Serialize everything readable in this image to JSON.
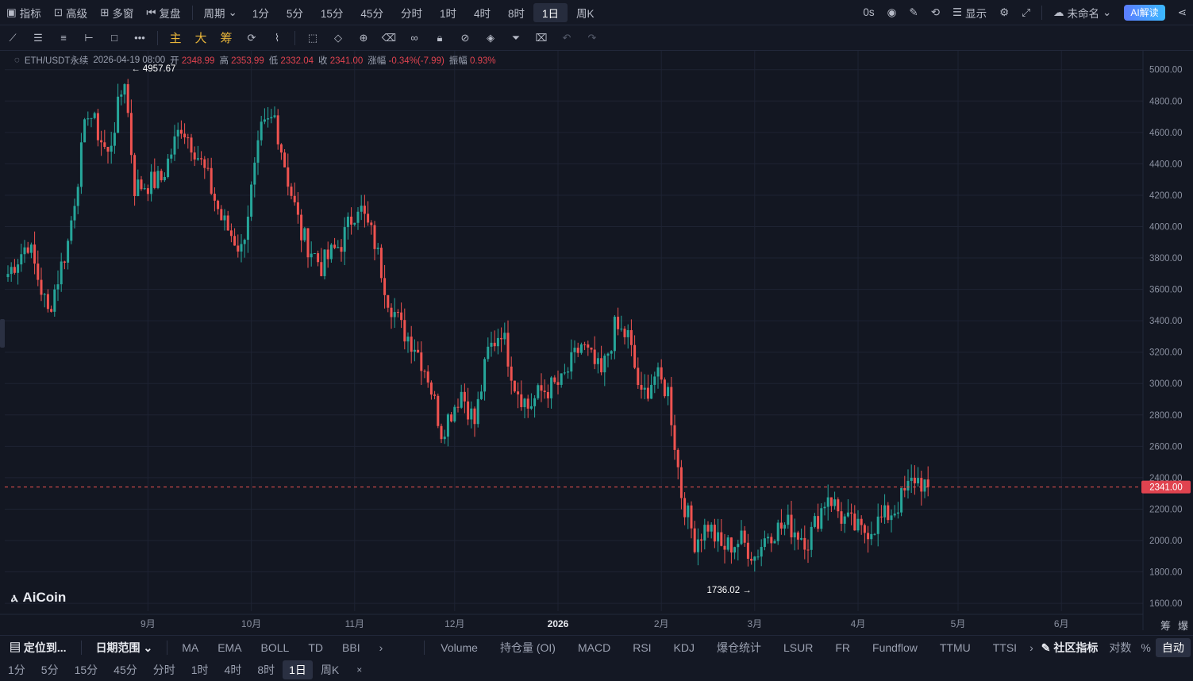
{
  "topbar": {
    "left": [
      {
        "icon": "indicator-icon",
        "label": "指标"
      },
      {
        "icon": "advanced-icon",
        "label": "高级"
      },
      {
        "icon": "multiwindow-icon",
        "label": "多窗"
      },
      {
        "icon": "replay-icon",
        "label": "复盘"
      }
    ],
    "period_label": "周期",
    "periods": [
      "1分",
      "5分",
      "15分",
      "45分",
      "分时",
      "1时",
      "4时",
      "8时",
      "1日",
      "周K"
    ],
    "active_period": "1日",
    "countdown": "0s",
    "display_label": "显示",
    "layout_name": "未命名",
    "ai_label": "AI解读"
  },
  "drawbar": {
    "main_label": "主",
    "big_label": "大",
    "chip_label": "筹"
  },
  "info": {
    "symbol": "ETH/USDT永续",
    "date": "2026-04-19 08:00",
    "open_label": "开",
    "open": "2348.99",
    "high_label": "高",
    "high": "2353.99",
    "low_label": "低",
    "low": "2332.04",
    "close_label": "收",
    "close": "2341.00",
    "change_label": "涨幅",
    "change": "-0.34%(-7.99)",
    "amp_label": "振幅",
    "amp": "0.93%"
  },
  "chart_data": {
    "type": "candlestick",
    "ylim": [
      1550,
      5120
    ],
    "yticks": [
      1600,
      1800,
      2000,
      2200,
      2400,
      2600,
      2800,
      3000,
      3200,
      3400,
      3600,
      3800,
      4000,
      4200,
      4400,
      4600,
      4800,
      5000
    ],
    "xticks": [
      {
        "label": "9月",
        "i": 42
      },
      {
        "label": "10月",
        "i": 73
      },
      {
        "label": "11月",
        "i": 104
      },
      {
        "label": "12月",
        "i": 134
      },
      {
        "label": "2026",
        "i": 165
      },
      {
        "label": "2月",
        "i": 196
      },
      {
        "label": "3月",
        "i": 224
      },
      {
        "label": "4月",
        "i": 255
      },
      {
        "label": "5月",
        "i": 285
      },
      {
        "label": "6月",
        "i": 316
      }
    ],
    "last_price": "2341.00",
    "high_mark": "4957.67",
    "low_mark": "1736.02",
    "up_color": "#26a69a",
    "down_color": "#ef5350",
    "keypoints": [
      [
        0,
        3700
      ],
      [
        6,
        3900
      ],
      [
        12,
        3450
      ],
      [
        18,
        3900
      ],
      [
        24,
        4750
      ],
      [
        30,
        4450
      ],
      [
        35,
        4950
      ],
      [
        38,
        4250
      ],
      [
        46,
        4300
      ],
      [
        52,
        4650
      ],
      [
        56,
        4500
      ],
      [
        60,
        4300
      ],
      [
        64,
        4050
      ],
      [
        70,
        3850
      ],
      [
        76,
        4600
      ],
      [
        80,
        4700
      ],
      [
        84,
        4300
      ],
      [
        88,
        3950
      ],
      [
        94,
        3750
      ],
      [
        100,
        3900
      ],
      [
        105,
        4150
      ],
      [
        110,
        3900
      ],
      [
        114,
        3550
      ],
      [
        118,
        3350
      ],
      [
        122,
        3250
      ],
      [
        126,
        3050
      ],
      [
        130,
        2700
      ],
      [
        136,
        2950
      ],
      [
        140,
        2750
      ],
      [
        144,
        3200
      ],
      [
        148,
        3350
      ],
      [
        152,
        3000
      ],
      [
        156,
        2850
      ],
      [
        160,
        2950
      ],
      [
        166,
        3000
      ],
      [
        172,
        3250
      ],
      [
        178,
        3050
      ],
      [
        182,
        3350
      ],
      [
        186,
        3300
      ],
      [
        190,
        2900
      ],
      [
        194,
        3050
      ],
      [
        198,
        2950
      ],
      [
        202,
        2300
      ],
      [
        206,
        2000
      ],
      [
        210,
        2100
      ],
      [
        214,
        1950
      ],
      [
        220,
        2000
      ],
      [
        224,
        1900
      ],
      [
        228,
        2050
      ],
      [
        234,
        2100
      ],
      [
        240,
        2000
      ],
      [
        246,
        2300
      ],
      [
        250,
        2150
      ],
      [
        256,
        2050
      ],
      [
        260,
        2100
      ],
      [
        266,
        2200
      ],
      [
        272,
        2400
      ],
      [
        276,
        2341
      ]
    ],
    "count": 277
  },
  "logo": {
    "text": "AiCoin"
  },
  "bottom1": {
    "locate": "定位到...",
    "range": "日期范围",
    "main_ind": [
      "MA",
      "EMA",
      "BOLL",
      "TD",
      "BBI"
    ],
    "sub_ind": [
      "Volume",
      "持仓量 (OI)",
      "MACD",
      "RSI",
      "KDJ",
      "爆仓统计",
      "LSUR",
      "FR",
      "Fundflow",
      "TTMU",
      "TTSI"
    ],
    "community": "社区指标",
    "log": "对数",
    "pct": "%",
    "auto": "自动"
  },
  "bottom2": {
    "periods": [
      "1分",
      "5分",
      "15分",
      "45分",
      "分时",
      "1时",
      "4时",
      "8时",
      "1日",
      "周K"
    ],
    "active": "1日"
  },
  "right_side": {
    "chou": "筹",
    "bao": "爆"
  }
}
